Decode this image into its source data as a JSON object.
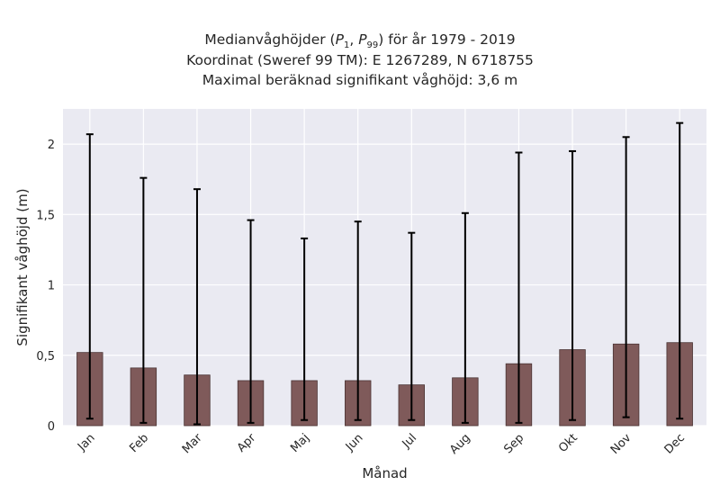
{
  "chart_data": {
    "type": "bar",
    "title": [
      "Medianvåghöjder (P1, P99) för år 1979 - 2019",
      "Koordinat (Sweref 99 TM): E 1267289, N 6718755",
      "Maximal beräknad signifikant våghöjd: 3,6 m"
    ],
    "title_parts": {
      "line1_prefix": "Medianvåghöjder (",
      "p1_base": "P",
      "p1_sub": "1",
      "sep": ", ",
      "p99_base": "P",
      "p99_sub": "99",
      "line1_suffix": ") för år 1979 - 2019",
      "line2": "Koordinat (Sweref 99 TM): E 1267289, N 6718755",
      "line3": "Maximal beräknad signifikant våghöjd: 3,6 m"
    },
    "xlabel": "Månad",
    "ylabel": "Signifikant våghöjd (m)",
    "categories": [
      "Jan",
      "Feb",
      "Mar",
      "Apr",
      "Maj",
      "Jun",
      "Jul",
      "Aug",
      "Sep",
      "Okt",
      "Nov",
      "Dec"
    ],
    "values": [
      0.52,
      0.41,
      0.36,
      0.32,
      0.32,
      0.32,
      0.29,
      0.34,
      0.44,
      0.54,
      0.58,
      0.59
    ],
    "error_low": [
      0.05,
      0.02,
      0.01,
      0.02,
      0.04,
      0.04,
      0.04,
      0.02,
      0.02,
      0.04,
      0.06,
      0.05
    ],
    "error_high": [
      2.07,
      1.76,
      1.68,
      1.46,
      1.33,
      1.45,
      1.37,
      1.51,
      1.94,
      1.95,
      2.05,
      2.15
    ],
    "yticks": [
      0,
      0.5,
      1,
      1.5,
      2
    ],
    "ytick_labels": [
      "0",
      "0,5",
      "1",
      "1,5",
      "2"
    ],
    "ylim": [
      0,
      2.25
    ],
    "grid": true,
    "colors": {
      "bar": "#7f5a5a",
      "bar_edge": "#4a3434",
      "errorbar": "#000000",
      "background": "#eaeaf2",
      "grid": "#ffffff"
    }
  }
}
